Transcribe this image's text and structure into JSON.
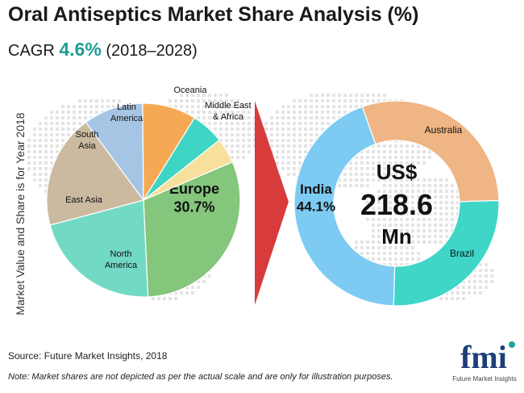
{
  "header": {
    "title": "Oral Antiseptics Market Share Analysis (%)",
    "cagr_label": "CAGR",
    "cagr_value": "4.6%",
    "cagr_period": "(2018–2028)"
  },
  "chart_data": [
    {
      "type": "pie",
      "ylabel": "Market Value and Share is for Year 2018",
      "slices": [
        {
          "label": "Europe",
          "value": 30.7,
          "display": "30.7%",
          "color": "#84c67c"
        },
        {
          "label": "North America",
          "value": 21.6,
          "color": "#72d9c4"
        },
        {
          "label": "East Asia",
          "value": 19.0,
          "color": "#cbb9a0"
        },
        {
          "label": "South Asia",
          "value": 10.0,
          "color": "#a6c5e4"
        },
        {
          "label": "Latin America",
          "value": 9.0,
          "color": "#f6a955"
        },
        {
          "label": "Oceania",
          "value": 5.5,
          "color": "#3ed5c4"
        },
        {
          "label": "Middle East & Africa",
          "value": 4.2,
          "color": "#f7e09c"
        }
      ]
    },
    {
      "type": "pie",
      "donut": true,
      "center_text": [
        "US$",
        "218.6",
        "Mn"
      ],
      "slices": [
        {
          "label": "India",
          "value": 44.1,
          "display": "44.1%",
          "color": "#7dcbf2"
        },
        {
          "label": "Australia",
          "value": 30.0,
          "color": "#efb584"
        },
        {
          "label": "Brazil",
          "value": 25.9,
          "color": "#3fd6c8"
        }
      ]
    }
  ],
  "footer": {
    "source": "Source: Future Market Insights, 2018",
    "note": "Note: Market shares are not depicted as per the actual scale and are only for illustration purposes.",
    "logo_text": "fmi",
    "logo_subtext": "Future Market Insights"
  },
  "colors": {
    "arrow": "#d83b3b",
    "logo_dark": "#1e3e7a",
    "logo_accent": "#1ca39a"
  }
}
